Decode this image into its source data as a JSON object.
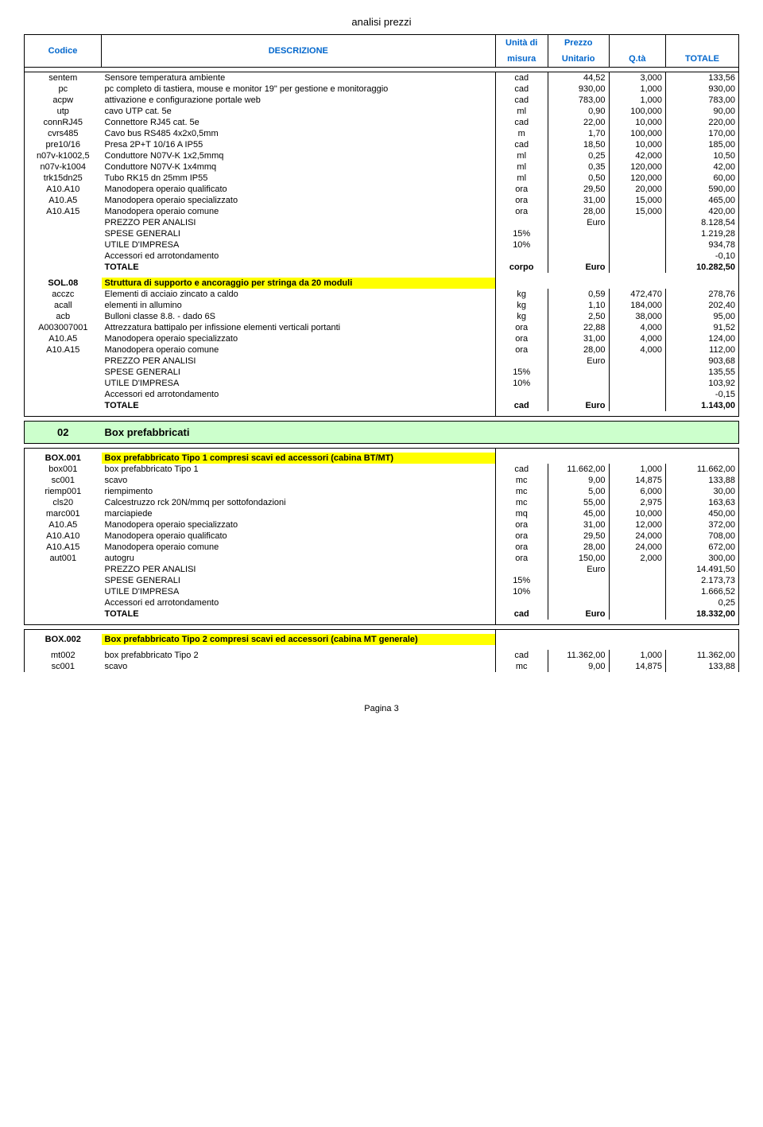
{
  "page_title": "analisi prezzi",
  "headers": {
    "codice": "Codice",
    "descrizione": "DESCRIZIONE",
    "unita_l1": "Unità di",
    "unita_l2": "misura",
    "prezzo_l1": "Prezzo",
    "prezzo_l2": "Unitario",
    "qta": "Q.tà",
    "totale": "TOTALE"
  },
  "block1": {
    "rows": [
      {
        "c": "sentem",
        "d": "Sensore temperatura ambiente",
        "u": "cad",
        "p": "44,52",
        "q": "3,000",
        "t": "133,56"
      },
      {
        "c": "pc",
        "d": "pc completo di tastiera, mouse e monitor 19\" per gestione e monitoraggio",
        "u": "cad",
        "p": "930,00",
        "q": "1,000",
        "t": "930,00"
      },
      {
        "c": "acpw",
        "d": "attivazione e configurazione portale web",
        "u": "cad",
        "p": "783,00",
        "q": "1,000",
        "t": "783,00"
      },
      {
        "c": "utp",
        "d": "cavo UTP cat. 5e",
        "u": "ml",
        "p": "0,90",
        "q": "100,000",
        "t": "90,00"
      },
      {
        "c": "connRJ45",
        "d": "Connettore RJ45 cat. 5e",
        "u": "cad",
        "p": "22,00",
        "q": "10,000",
        "t": "220,00"
      },
      {
        "c": "cvrs485",
        "d": "Cavo bus RS485 4x2x0,5mm",
        "u": "m",
        "p": "1,70",
        "q": "100,000",
        "t": "170,00"
      },
      {
        "c": "pre10/16",
        "d": "Presa 2P+T 10/16 A IP55",
        "u": "cad",
        "p": "18,50",
        "q": "10,000",
        "t": "185,00"
      },
      {
        "c": "n07v-k1002,5",
        "d": "Conduttore N07V-K 1x2,5mmq",
        "u": "ml",
        "p": "0,25",
        "q": "42,000",
        "t": "10,50"
      },
      {
        "c": "n07v-k1004",
        "d": "Conduttore N07V-K 1x4mmq",
        "u": "ml",
        "p": "0,35",
        "q": "120,000",
        "t": "42,00"
      },
      {
        "c": "trk15dn25",
        "d": "Tubo RK15 dn 25mm IP55",
        "u": "ml",
        "p": "0,50",
        "q": "120,000",
        "t": "60,00"
      },
      {
        "c": "A10.A10",
        "d": "Manodopera operaio qualificato",
        "u": "ora",
        "p": "29,50",
        "q": "20,000",
        "t": "590,00"
      },
      {
        "c": "A10.A5",
        "d": "Manodopera operaio specializzato",
        "u": "ora",
        "p": "31,00",
        "q": "15,000",
        "t": "465,00"
      },
      {
        "c": "A10.A15",
        "d": "Manodopera operaio comune",
        "u": "ora",
        "p": "28,00",
        "q": "15,000",
        "t": "420,00"
      }
    ],
    "analisi": {
      "d": "PREZZO PER ANALISI",
      "p": "Euro",
      "t": "8.128,54"
    },
    "spese": {
      "d": "SPESE GENERALI",
      "u": "15%",
      "t": "1.219,28"
    },
    "utile": {
      "d": "UTILE D'IMPRESA",
      "u": "10%",
      "t": "934,78"
    },
    "acc": {
      "d": "Accessori ed arrotondamento",
      "t": "-0,10"
    },
    "tot": {
      "d": "TOTALE",
      "u": "corpo",
      "p": "Euro",
      "t": "10.282,50"
    }
  },
  "sol08": {
    "code": "SOL.08",
    "title": "Struttura di supporto e ancoraggio per stringa da 20 moduli",
    "rows": [
      {
        "c": "acczc",
        "d": "Elementi di acciaio zincato a caldo",
        "u": "kg",
        "p": "0,59",
        "q": "472,470",
        "t": "278,76"
      },
      {
        "c": "acall",
        "d": "elementi in allumino",
        "u": "kg",
        "p": "1,10",
        "q": "184,000",
        "t": "202,40"
      },
      {
        "c": "acb",
        "d": "Bulloni classe 8.8. - dado 6S",
        "u": "kg",
        "p": "2,50",
        "q": "38,000",
        "t": "95,00"
      },
      {
        "c": "A003007001",
        "d": "Attrezzatura battipalo per infissione elementi verticali portanti",
        "u": "ora",
        "p": "22,88",
        "q": "4,000",
        "t": "91,52"
      },
      {
        "c": "A10.A5",
        "d": "Manodopera operaio specializzato",
        "u": "ora",
        "p": "31,00",
        "q": "4,000",
        "t": "124,00"
      },
      {
        "c": "A10.A15",
        "d": "Manodopera operaio comune",
        "u": "ora",
        "p": "28,00",
        "q": "4,000",
        "t": "112,00"
      }
    ],
    "analisi": {
      "d": "PREZZO PER ANALISI",
      "p": "Euro",
      "t": "903,68"
    },
    "spese": {
      "d": "SPESE GENERALI",
      "u": "15%",
      "t": "135,55"
    },
    "utile": {
      "d": "UTILE D'IMPRESA",
      "u": "10%",
      "t": "103,92"
    },
    "acc": {
      "d": "Accessori ed arrotondamento",
      "t": "-0,15"
    },
    "tot": {
      "d": "TOTALE",
      "u": "cad",
      "p": "Euro",
      "t": "1.143,00"
    }
  },
  "section02": {
    "code": "02",
    "title": "Box prefabbricati"
  },
  "box001": {
    "code": "BOX.001",
    "title": "Box prefabbricato Tipo 1 compresi scavi ed accessori (cabina BT/MT)",
    "rows": [
      {
        "c": "box001",
        "d": "box prefabbricato Tipo 1",
        "u": "cad",
        "p": "11.662,00",
        "q": "1,000",
        "t": "11.662,00"
      },
      {
        "c": "sc001",
        "d": "scavo",
        "u": "mc",
        "p": "9,00",
        "q": "14,875",
        "t": "133,88"
      },
      {
        "c": "riemp001",
        "d": "riempimento",
        "u": "mc",
        "p": "5,00",
        "q": "6,000",
        "t": "30,00"
      },
      {
        "c": "cls20",
        "d": "Calcestruzzo rck 20N/mmq per sottofondazioni",
        "u": "mc",
        "p": "55,00",
        "q": "2,975",
        "t": "163,63"
      },
      {
        "c": "marc001",
        "d": "marciapiede",
        "u": "mq",
        "p": "45,00",
        "q": "10,000",
        "t": "450,00"
      },
      {
        "c": "A10.A5",
        "d": "Manodopera operaio specializzato",
        "u": "ora",
        "p": "31,00",
        "q": "12,000",
        "t": "372,00"
      },
      {
        "c": "A10.A10",
        "d": "Manodopera operaio qualificato",
        "u": "ora",
        "p": "29,50",
        "q": "24,000",
        "t": "708,00"
      },
      {
        "c": "A10.A15",
        "d": "Manodopera operaio comune",
        "u": "ora",
        "p": "28,00",
        "q": "24,000",
        "t": "672,00"
      },
      {
        "c": "aut001",
        "d": "autogru",
        "u": "ora",
        "p": "150,00",
        "q": "2,000",
        "t": "300,00"
      }
    ],
    "analisi": {
      "d": "PREZZO PER ANALISI",
      "p": "Euro",
      "t": "14.491,50"
    },
    "spese": {
      "d": "SPESE GENERALI",
      "u": "15%",
      "t": "2.173,73"
    },
    "utile": {
      "d": "UTILE D'IMPRESA",
      "u": "10%",
      "t": "1.666,52"
    },
    "acc": {
      "d": "Accessori ed arrotondamento",
      "t": "0,25"
    },
    "tot": {
      "d": "TOTALE",
      "u": "cad",
      "p": "Euro",
      "t": "18.332,00"
    }
  },
  "box002": {
    "code": "BOX.002",
    "title": "Box prefabbricato Tipo 2 compresi scavi ed accessori (cabina MT generale)",
    "rows": [
      {
        "c": "mt002",
        "d": "box prefabbricato Tipo 2",
        "u": "cad",
        "p": "11.362,00",
        "q": "1,000",
        "t": "11.362,00"
      },
      {
        "c": "sc001",
        "d": "scavo",
        "u": "mc",
        "p": "9,00",
        "q": "14,875",
        "t": "133,88"
      }
    ]
  },
  "pagenum": "Pagina 3"
}
